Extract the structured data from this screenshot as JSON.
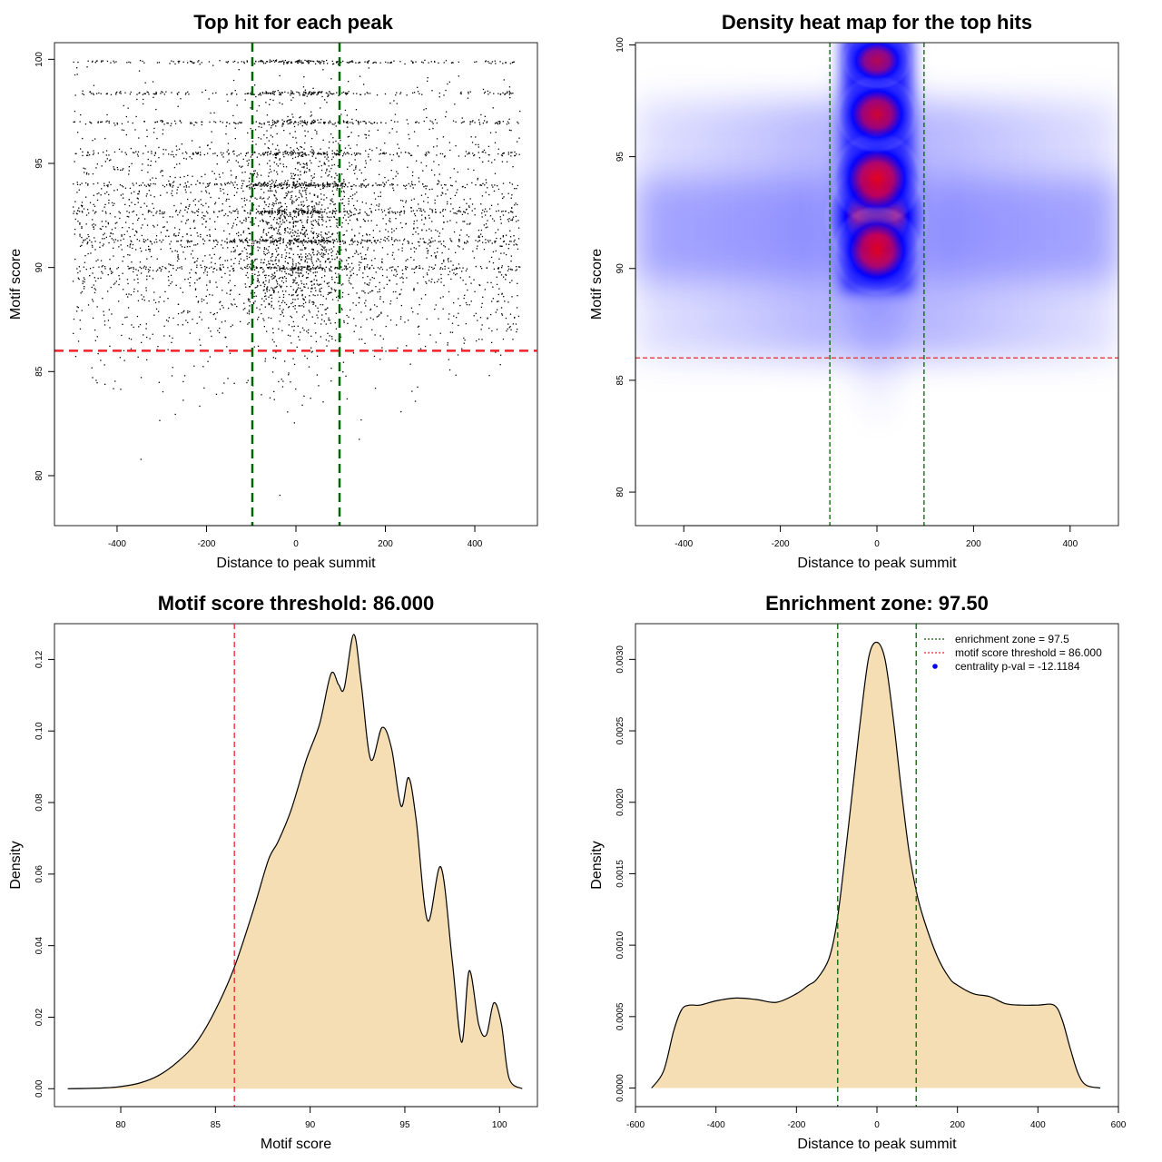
{
  "panels": [
    {
      "id": "scatter",
      "title": "Top hit for each peak",
      "xlabel": "Distance to peak summit",
      "ylabel": "Motif score",
      "xticks": [
        -400,
        -200,
        0,
        200,
        400
      ],
      "yticks": [
        80,
        85,
        90,
        95,
        100
      ]
    },
    {
      "id": "heatmap",
      "title": "Density heat map for the top hits",
      "xlabel": "Distance to peak summit",
      "ylabel": "Motif score",
      "xticks": [
        -400,
        -200,
        0,
        200,
        400
      ],
      "yticks": [
        80,
        85,
        90,
        95,
        100
      ]
    },
    {
      "id": "score-density",
      "title": "Motif score threshold: 86.000",
      "xlabel": "Motif score",
      "ylabel": "Density",
      "xticks": [
        80,
        85,
        90,
        95,
        100
      ],
      "yticks": [
        "0.00",
        "0.02",
        "0.04",
        "0.06",
        "0.08",
        "0.10",
        "0.12"
      ]
    },
    {
      "id": "distance-density",
      "title": "Enrichment zone: 97.50",
      "xlabel": "Distance to peak summit",
      "ylabel": "Density",
      "xticks": [
        -600,
        -400,
        -200,
        0,
        200,
        400,
        600
      ],
      "yticks": [
        "0.0000",
        "0.0005",
        "0.0010",
        "0.0015",
        "0.0020",
        "0.0025",
        "0.0030"
      ],
      "legend": [
        "enrichment zone = 97.5",
        "motif score threshold = 86.000",
        "centrality p-val = -12.1184"
      ]
    }
  ],
  "colors": {
    "enrichment_line": "#006400",
    "threshold_line": "#e8262b",
    "density_fill": "#f5deb3",
    "heat_low": "#ffffff",
    "heat_mid": "#0000ff",
    "heat_high": "#ff0000",
    "pval_point": "#0000ff"
  },
  "chart_data": [
    {
      "type": "scatter",
      "title": "Top hit for each peak",
      "xlabel": "Distance to peak summit",
      "ylabel": "Motif score",
      "xlim": [
        -540,
        540
      ],
      "ylim": [
        77.6,
        100.8
      ],
      "score_threshold": 86,
      "enrichment_zone": [
        -97.5,
        97.5
      ],
      "point_distribution": {
        "x_range": [
          -500,
          500
        ],
        "score_range": [
          78.5,
          100
        ],
        "note_levels": [
          99.9,
          98.4,
          97.0,
          95.5,
          94.0,
          92.7,
          91.3,
          90.0
        ]
      }
    },
    {
      "type": "heatmap",
      "title": "Density heat map for the top hits",
      "xlabel": "Distance to peak summit",
      "ylabel": "Motif score",
      "xlim": [
        -500,
        500
      ],
      "ylim": [
        78.5,
        100.1
      ],
      "score_threshold": 86,
      "enrichment_zone": [
        -97.5,
        97.5
      ],
      "density_peaks": [
        {
          "x": 0,
          "y": 92.3,
          "weight": 1.0
        },
        {
          "x": 0,
          "y": 94.0,
          "weight": 0.75
        },
        {
          "x": 0,
          "y": 90.8,
          "weight": 0.7
        },
        {
          "x": 0,
          "y": 96.9,
          "weight": 0.55
        },
        {
          "x": 0,
          "y": 99.3,
          "weight": 0.3
        }
      ]
    },
    {
      "type": "area",
      "title": "Motif score threshold: 86.000",
      "xlabel": "Motif score",
      "ylabel": "Density",
      "xlim": [
        76.5,
        102
      ],
      "ylim": [
        -0.005,
        0.13
      ],
      "threshold": 86,
      "x": [
        77.2,
        79,
        80,
        81,
        82,
        83,
        84,
        85,
        86,
        87,
        87.8,
        88.3,
        89,
        89.8,
        90.5,
        91.1,
        91.5,
        91.8,
        92.3,
        92.7,
        93.2,
        93.8,
        94.3,
        94.8,
        95.2,
        95.6,
        96.2,
        96.9,
        97.5,
        98.0,
        98.4,
        98.9,
        99.3,
        99.7,
        100.1,
        100.5,
        101.2
      ],
      "y": [
        0.0,
        0.0002,
        0.0006,
        0.0016,
        0.0037,
        0.0075,
        0.013,
        0.022,
        0.034,
        0.05,
        0.064,
        0.069,
        0.078,
        0.092,
        0.102,
        0.116,
        0.113,
        0.112,
        0.127,
        0.113,
        0.092,
        0.101,
        0.095,
        0.079,
        0.087,
        0.075,
        0.047,
        0.062,
        0.036,
        0.013,
        0.033,
        0.018,
        0.015,
        0.024,
        0.018,
        0.003,
        0.0
      ]
    },
    {
      "type": "area",
      "title": "Enrichment zone: 97.50",
      "xlabel": "Distance to peak summit",
      "ylabel": "Density",
      "xlim": [
        -600,
        600
      ],
      "ylim": [
        -0.00013,
        0.00325
      ],
      "enrichment_zone": [
        -97.5,
        97.5
      ],
      "x": [
        -560,
        -530,
        -505,
        -485,
        -465,
        -440,
        -400,
        -350,
        -300,
        -250,
        -200,
        -170,
        -150,
        -120,
        -100,
        -80,
        -60,
        -40,
        -20,
        0,
        20,
        40,
        60,
        80,
        100,
        120,
        150,
        180,
        200,
        240,
        280,
        320,
        360,
        400,
        440,
        460,
        480,
        500,
        520,
        555
      ],
      "y": [
        0.0,
        0.00012,
        0.0004,
        0.00055,
        0.00058,
        0.00058,
        0.00061,
        0.00063,
        0.00062,
        0.0006,
        0.00066,
        0.00072,
        0.00076,
        0.0009,
        0.00115,
        0.0016,
        0.0021,
        0.0026,
        0.00302,
        0.00312,
        0.003,
        0.0026,
        0.0021,
        0.00165,
        0.00135,
        0.00115,
        0.00092,
        0.00077,
        0.00072,
        0.00066,
        0.00064,
        0.00059,
        0.00058,
        0.00058,
        0.00058,
        0.00048,
        0.00028,
        0.0001,
        2e-05,
        0.0
      ]
    }
  ]
}
